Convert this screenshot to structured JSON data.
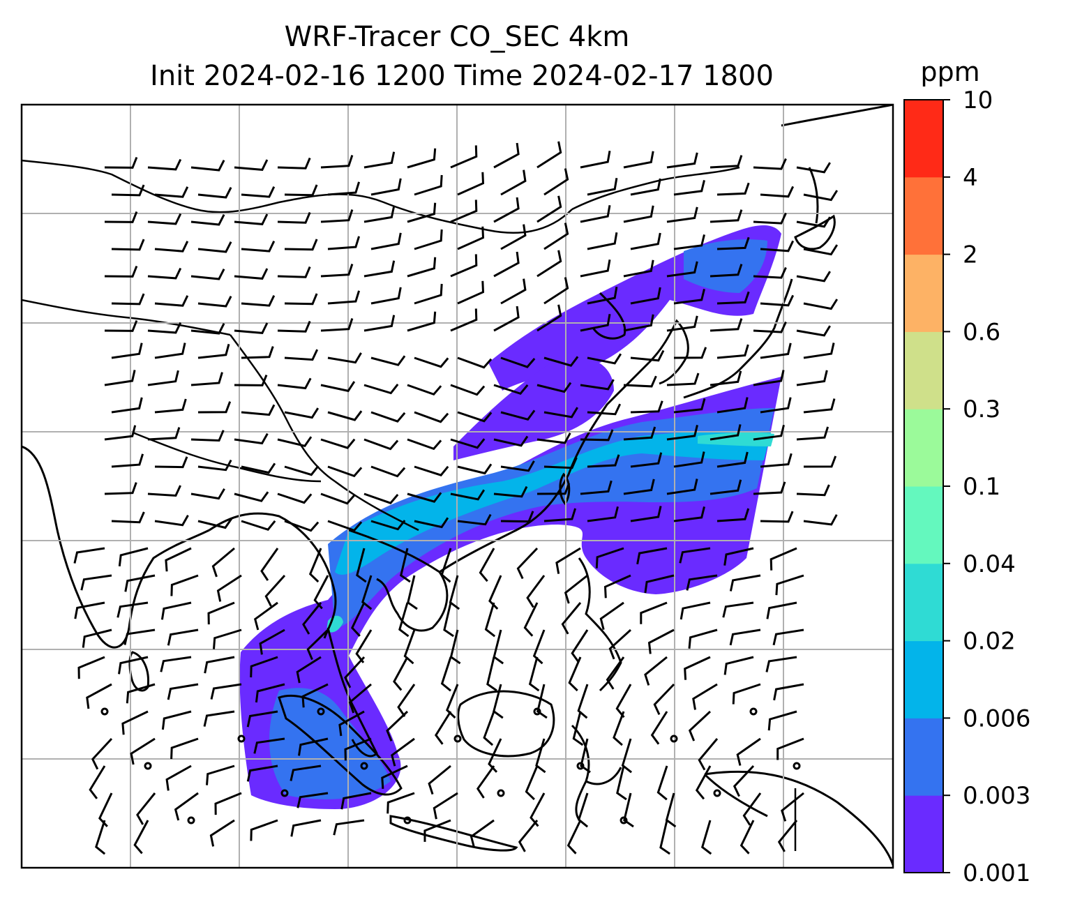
{
  "figure": {
    "title_line1": "WRF-Tracer CO_SEC 4km",
    "title_line2": "Init 2024-02-16 1200 Time 2024-02-17 1800"
  },
  "colorbar": {
    "unit": "ppm",
    "levels": [
      "0.001",
      "0.003",
      "0.006",
      "0.02",
      "0.04",
      "0.1",
      "0.3",
      "0.6",
      "2",
      "4",
      "10"
    ],
    "colors": [
      "#6a2bff",
      "#3473f0",
      "#03b4ea",
      "#2fdbd4",
      "#64f8be",
      "#9bfa9a",
      "#cfe08a",
      "#fdb265",
      "#ff7139",
      "#ff2a17"
    ]
  },
  "map": {
    "field": "CO_SEC tracer concentration",
    "overlays": [
      "coastlines",
      "country borders",
      "lat-lon gridlines",
      "wind barbs"
    ],
    "gridlines": true
  }
}
